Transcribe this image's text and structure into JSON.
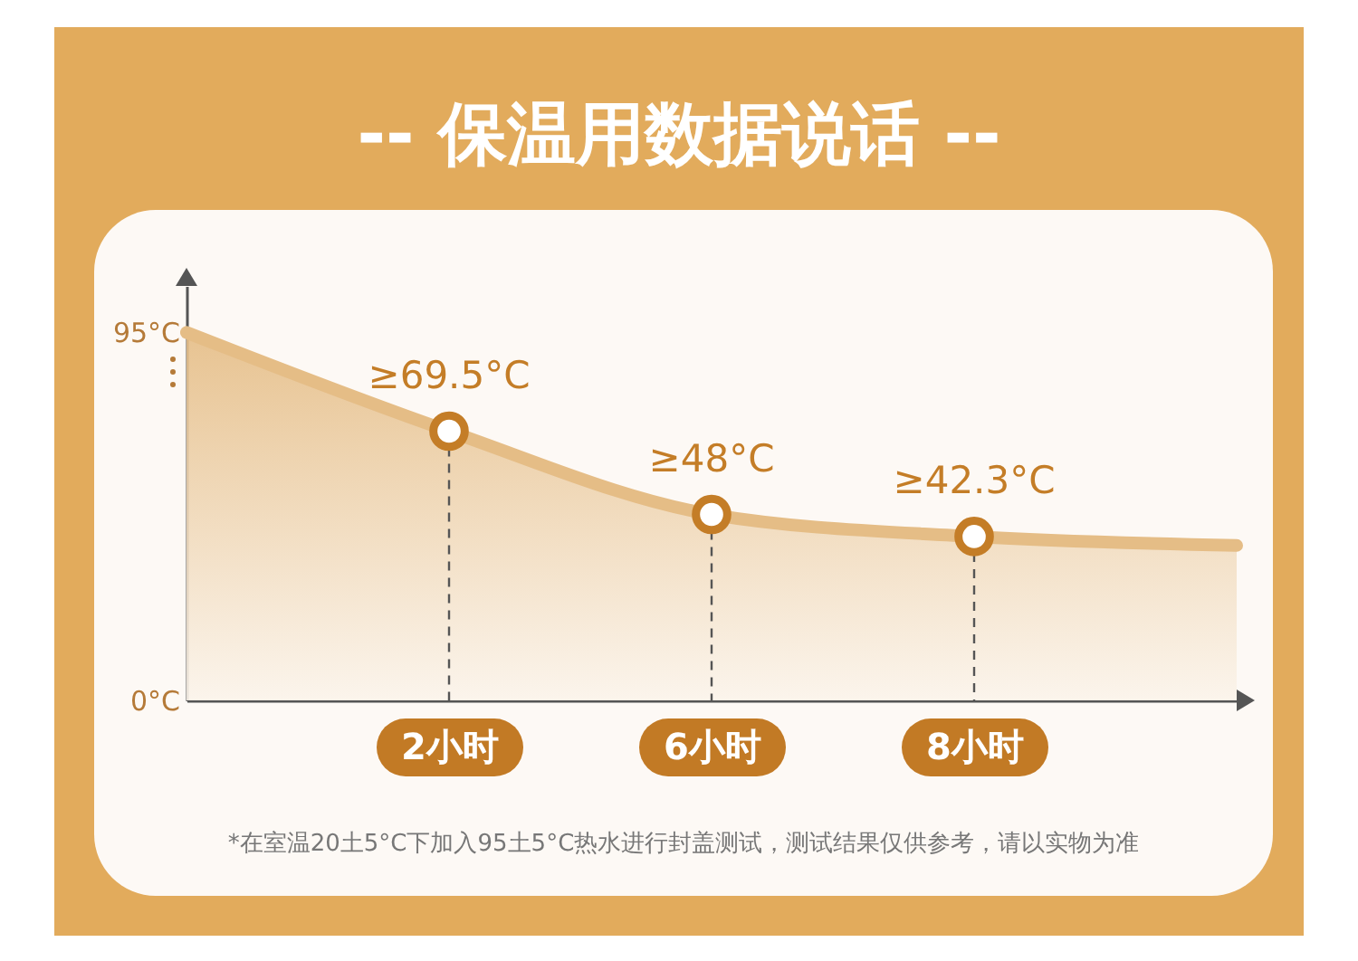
{
  "chart_data": {
    "type": "area",
    "title": "-- 保温用数据说话 --",
    "categories": [
      null,
      "2小时",
      "6小时",
      "8小时",
      null
    ],
    "series": [
      {
        "color": "#e5bd86",
        "values": [
          95,
          69.5,
          48,
          42.3,
          40
        ]
      },
      {
        "type": "lollipop",
        "color": "#c47d27",
        "values": [
          null,
          69.5,
          48,
          42.3,
          null
        ],
        "value_labels": [
          null,
          "≥69.5°C",
          "≥48°C",
          "≥42.3°C",
          null
        ],
        "marker": "circle",
        "line_style": "dashed"
      }
    ],
    "ylim": [
      0,
      107
    ],
    "yticks": [
      {
        "value": 95,
        "label": "95°C"
      },
      {
        "value": 0,
        "label": "0°C"
      }
    ],
    "grid": false,
    "annotations": [
      "*在室温20土5°C下加入95土5°C热水进行封盖测试，测试结果仅供参考，请以实物为准"
    ]
  }
}
